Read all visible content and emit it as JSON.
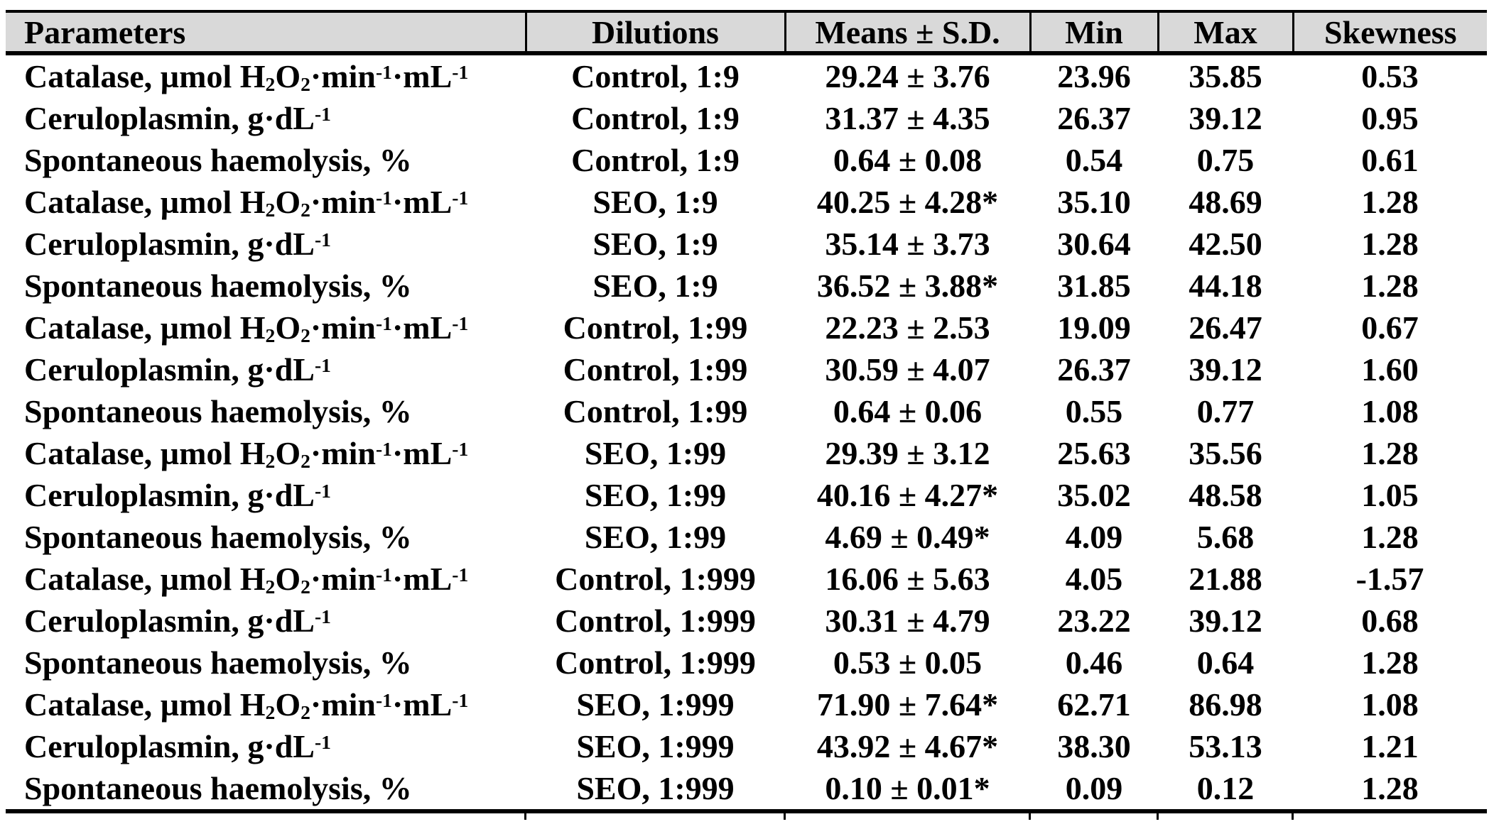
{
  "table": {
    "header_bg": "#d9d9d9",
    "rule_color": "#000000",
    "text_color": "#000000",
    "columns": [
      {
        "key": "parameter",
        "label": "Parameters",
        "rich": true
      },
      {
        "key": "dilution",
        "label": "Dilutions",
        "rich": false
      },
      {
        "key": "mean_sd",
        "label": "Means ± S.D.",
        "rich": false
      },
      {
        "key": "min",
        "label": "Min",
        "rich": false
      },
      {
        "key": "max",
        "label": "Max",
        "rich": false
      },
      {
        "key": "skewness",
        "label": "Skewness",
        "rich": false
      }
    ],
    "rows": [
      {
        "parameter": "Catalase, µmol H_{2}O_{2}·min^{-1}·mL^{-1}",
        "dilution": "Control, 1:9",
        "mean_sd": "29.24 ± 3.76",
        "min": "23.96",
        "max": "35.85",
        "skewness": "0.53"
      },
      {
        "parameter": "Ceruloplasmin, g·dL^{-1}",
        "dilution": "Control, 1:9",
        "mean_sd": "31.37 ± 4.35",
        "min": "26.37",
        "max": "39.12",
        "skewness": "0.95"
      },
      {
        "parameter": "Spontaneous haemolysis, %",
        "dilution": "Control, 1:9",
        "mean_sd": "0.64 ± 0.08",
        "min": "0.54",
        "max": "0.75",
        "skewness": "0.61"
      },
      {
        "parameter": "Catalase, µmol H_{2}O_{2}·min^{-1}·mL^{-1}",
        "dilution": "SEO, 1:9",
        "mean_sd": "40.25 ± 4.28*",
        "min": "35.10",
        "max": "48.69",
        "skewness": "1.28"
      },
      {
        "parameter": "Ceruloplasmin, g·dL^{-1}",
        "dilution": "SEO, 1:9",
        "mean_sd": "35.14 ± 3.73",
        "min": "30.64",
        "max": "42.50",
        "skewness": "1.28"
      },
      {
        "parameter": "Spontaneous haemolysis, %",
        "dilution": "SEO, 1:9",
        "mean_sd": "36.52 ± 3.88*",
        "min": "31.85",
        "max": "44.18",
        "skewness": "1.28"
      },
      {
        "parameter": "Catalase, µmol H_{2}O_{2}·min^{-1}·mL^{-1}",
        "dilution": "Control, 1:99",
        "mean_sd": "22.23 ± 2.53",
        "min": "19.09",
        "max": "26.47",
        "skewness": "0.67"
      },
      {
        "parameter": "Ceruloplasmin, g·dL^{-1}",
        "dilution": "Control, 1:99",
        "mean_sd": "30.59 ± 4.07",
        "min": "26.37",
        "max": "39.12",
        "skewness": "1.60"
      },
      {
        "parameter": "Spontaneous haemolysis, %",
        "dilution": "Control, 1:99",
        "mean_sd": "0.64 ± 0.06",
        "min": "0.55",
        "max": "0.77",
        "skewness": "1.08"
      },
      {
        "parameter": "Catalase, µmol H_{2}O_{2}·min^{-1}·mL^{-1}",
        "dilution": "SEO, 1:99",
        "mean_sd": "29.39 ± 3.12",
        "min": "25.63",
        "max": "35.56",
        "skewness": "1.28"
      },
      {
        "parameter": "Ceruloplasmin, g·dL^{-1}",
        "dilution": "SEO, 1:99",
        "mean_sd": "40.16 ± 4.27*",
        "min": "35.02",
        "max": "48.58",
        "skewness": "1.05"
      },
      {
        "parameter": "Spontaneous haemolysis, %",
        "dilution": "SEO, 1:99",
        "mean_sd": "4.69 ± 0.49*",
        "min": "4.09",
        "max": "5.68",
        "skewness": "1.28"
      },
      {
        "parameter": "Catalase, µmol H_{2}O_{2}·min^{-1}·mL^{-1}",
        "dilution": "Control, 1:999",
        "mean_sd": "16.06 ± 5.63",
        "min": "4.05",
        "max": "21.88",
        "skewness": "-1.57"
      },
      {
        "parameter": "Ceruloplasmin, g·dL^{-1}",
        "dilution": "Control, 1:999",
        "mean_sd": "30.31 ± 4.79",
        "min": "23.22",
        "max": "39.12",
        "skewness": "0.68"
      },
      {
        "parameter": "Spontaneous haemolysis, %",
        "dilution": "Control, 1:999",
        "mean_sd": "0.53 ± 0.05",
        "min": "0.46",
        "max": "0.64",
        "skewness": "1.28"
      },
      {
        "parameter": "Catalase, µmol H_{2}O_{2}·min^{-1}·mL^{-1}",
        "dilution": "SEO, 1:999",
        "mean_sd": "71.90 ± 7.64*",
        "min": "62.71",
        "max": "86.98",
        "skewness": "1.08"
      },
      {
        "parameter": "Ceruloplasmin, g·dL^{-1}",
        "dilution": "SEO, 1:999",
        "mean_sd": "43.92 ± 4.67*",
        "min": "38.30",
        "max": "53.13",
        "skewness": "1.21"
      },
      {
        "parameter": "Spontaneous haemolysis, %",
        "dilution": "SEO, 1:999",
        "mean_sd": "0.10 ± 0.01*",
        "min": "0.09",
        "max": "0.12",
        "skewness": "1.28"
      }
    ]
  }
}
